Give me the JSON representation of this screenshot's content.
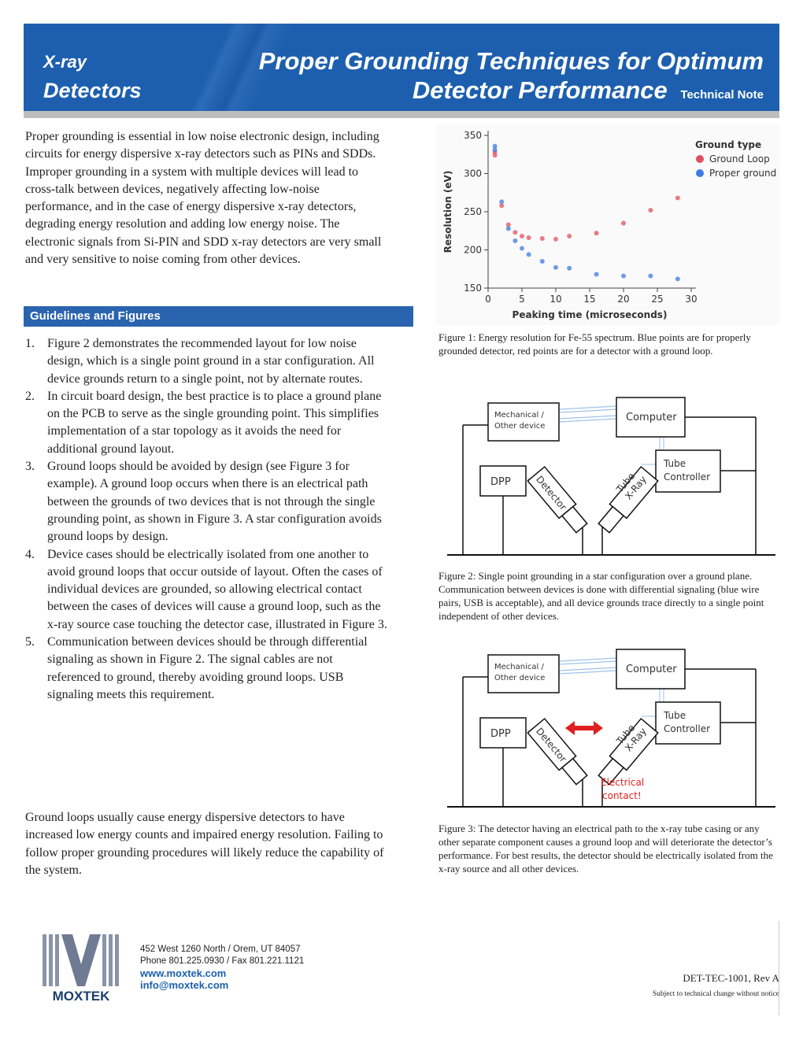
{
  "header": {
    "category_line1": "X-ray",
    "category_line2": "Detectors",
    "title_line1": "Proper Grounding Techniques for Optimum",
    "title_line2": "Detector Performance",
    "subtitle": "Technical Note"
  },
  "intro": "Proper grounding is essential in low noise electronic design, including circuits for energy dispersive x-ray detectors such as PINs and SDDs.  Improper grounding in a system with multiple devices will lead to cross-talk between devices, negatively affecting low-noise performance, and in the case of energy dispersive x-ray detectors, degrading energy resolution and adding low energy noise.  The electronic signals from Si-PIN and SDD x-ray detectors are very small and very sensitive to noise coming from other devices.",
  "section_heading": "Guidelines and Figures",
  "guidelines": [
    {
      "number": "1.",
      "text": "Figure 2 demonstrates the recommended layout for low noise design, which is a single point ground in a star configuration.  All device grounds return to a single point, not by alternate routes."
    },
    {
      "number": "2.",
      "text": "In circuit board design, the best practice is to place a ground plane on the PCB to serve as the single grounding point.  This simplifies implementation of a star topology as it avoids the need for additional ground layout."
    },
    {
      "number": "3.",
      "text": "Ground loops should be avoided by design (see Figure 3 for example).  A ground loop occurs when there is an electrical path between the grounds of two devices that is not through the single grounding point, as shown in Figure 3.  A star configuration avoids ground loops by design."
    },
    {
      "number": "4.",
      "text": "Device cases should be electrically isolated from one another to avoid ground loops that occur outside of layout.  Often the cases of individual devices are grounded, so allowing electrical contact between the cases of devices will cause a ground loop, such as the x-ray source case touching the detector case, illustrated in Figure 3."
    },
    {
      "number": "5.",
      "text": "Communication between devices should be through differential signaling as shown in Figure 2.  The signal cables are not referenced to ground, thereby avoiding ground loops.  USB signaling meets this requirement."
    }
  ],
  "closing": "Ground loops usually cause energy dispersive detectors to have increased low energy counts and impaired energy resolution.  Failing to follow proper grounding procedures will likely reduce the capability of the system.",
  "figure1": {
    "chart_data": {
      "type": "scatter",
      "x_label": "Peaking time (microseconds)",
      "y_label": "Resolution (eV)",
      "legend_title": "Ground type",
      "xlim": [
        0,
        30
      ],
      "xticks": [
        0,
        5,
        10,
        15,
        20,
        25,
        30
      ],
      "ylim": [
        150,
        350
      ],
      "yticks": [
        150,
        200,
        250,
        300,
        350
      ],
      "series": [
        {
          "name": "Ground Loop",
          "color": "#e0505c",
          "x": [
            1,
            1,
            2,
            3,
            4,
            5,
            6,
            8,
            10,
            12,
            16,
            20,
            24,
            28
          ],
          "values": [
            328,
            324,
            258,
            233,
            223,
            218,
            216,
            215,
            214,
            218,
            222,
            235,
            252,
            268
          ]
        },
        {
          "name": "Proper ground",
          "color": "#3f7be0",
          "x": [
            1,
            1,
            2,
            3,
            4,
            5,
            6,
            8,
            10,
            12,
            16,
            20,
            24,
            28
          ],
          "values": [
            336,
            331,
            263,
            228,
            212,
            202,
            194,
            185,
            177,
            176,
            168,
            166,
            166,
            162
          ]
        }
      ]
    },
    "caption": "Figure 1: Energy resolution for Fe-55 spectrum.  Blue points are for properly grounded detector, red points are for a detector with a ground loop."
  },
  "figure2": {
    "labels": {
      "mechanical": "Mechanical /",
      "other_device": "Other device",
      "computer": "Computer",
      "tube": "Tube",
      "controller": "Controller",
      "dpp": "DPP",
      "detector": "Detector",
      "xray": "X-Ray",
      "xray_tube": "Tube"
    },
    "caption": "Figure 2: Single point grounding in a star configuration over a ground plane.  Communication between devices is done with differential signaling (blue wire pairs, USB is acceptable), and all device grounds trace directly to a single point independent of other devices."
  },
  "figure3": {
    "labels": {
      "mechanical": "Mechanical /",
      "other_device": "Other device",
      "computer": "Computer",
      "tube": "Tube",
      "controller": "Controller",
      "dpp": "DPP",
      "detector": "Detector",
      "xray": "X-Ray",
      "xray_tube": "Tube",
      "contact_line1": "Electrical",
      "contact_line2": "contact!"
    },
    "caption": "Figure 3:  The detector having an electrical path to the x-ray tube casing or any other separate component causes a ground loop and will deteriorate the detector’s performance.  For best results, the detector should be electrically isolated from the x-ray source and all other devices."
  },
  "footer": {
    "logo": "MOXTEK",
    "address": "452 West 1260 North / Orem, UT 84057",
    "phone": "Phone 801.225.0930 / Fax 801.221.1121",
    "website": "www.moxtek.com",
    "email": "info@moxtek.com",
    "doc_id": "DET-TEC-1001, Rev A",
    "notice": "Subject to technical change without notice"
  }
}
